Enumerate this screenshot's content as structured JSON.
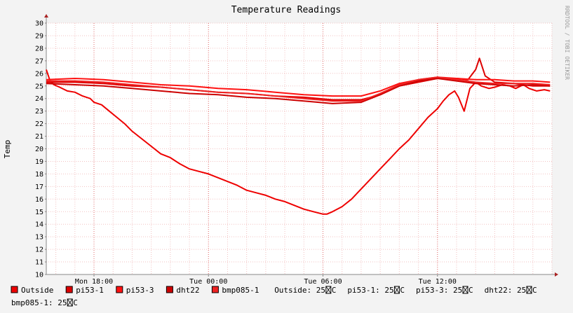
{
  "chart_data": {
    "type": "line",
    "title": "Temperature Readings",
    "ylabel": "Temp",
    "xlabel": "",
    "watermark": "RRDTOOL / TOBI OETIKER",
    "ylim": [
      10,
      30
    ],
    "yticks": [
      10,
      11,
      12,
      13,
      14,
      15,
      16,
      17,
      18,
      19,
      20,
      21,
      22,
      23,
      24,
      25,
      26,
      27,
      28,
      29,
      30
    ],
    "xlim": [
      15.5,
      42.0
    ],
    "x_unit": "hours since Mon 00:00",
    "xticks": [
      {
        "x": 18,
        "label": "Mon 18:00"
      },
      {
        "x": 24,
        "label": "Tue 00:00"
      },
      {
        "x": 30,
        "label": "Tue 06:00"
      },
      {
        "x": 36,
        "label": "Tue 12:00"
      }
    ],
    "grid": true,
    "legend_position": "bottom",
    "series": [
      {
        "name": "Outside",
        "color": "#ee0000",
        "x": [
          15.5,
          15.7,
          15.9,
          16.2,
          16.6,
          17.0,
          17.4,
          17.8,
          18.0,
          18.4,
          18.8,
          19.2,
          19.6,
          20.0,
          20.5,
          21.0,
          21.5,
          22.0,
          22.5,
          23.0,
          23.5,
          24.0,
          24.5,
          25.0,
          25.5,
          26.0,
          26.5,
          27.0,
          27.5,
          28.0,
          28.5,
          29.0,
          29.5,
          30.0,
          30.2,
          30.5,
          31.0,
          31.5,
          32.0,
          32.5,
          33.0,
          33.5,
          34.0,
          34.5,
          35.0,
          35.5,
          36.0,
          36.3,
          36.6,
          36.9,
          37.1,
          37.4,
          37.7,
          38.0,
          38.3,
          38.7,
          39.0,
          39.4,
          39.8,
          40.1,
          40.5,
          40.8,
          41.2,
          41.6,
          41.9
        ],
        "values": [
          26.3,
          25.4,
          25.1,
          24.9,
          24.6,
          24.5,
          24.2,
          24.0,
          23.7,
          23.5,
          23.0,
          22.5,
          22.0,
          21.4,
          20.8,
          20.2,
          19.6,
          19.3,
          18.8,
          18.4,
          18.2,
          18.0,
          17.7,
          17.4,
          17.1,
          16.7,
          16.5,
          16.3,
          16.0,
          15.8,
          15.5,
          15.2,
          15.0,
          14.8,
          14.8,
          15.0,
          15.4,
          16.0,
          16.8,
          17.6,
          18.4,
          19.2,
          20.0,
          20.7,
          21.6,
          22.5,
          23.2,
          23.8,
          24.3,
          24.6,
          24.1,
          23.0,
          24.8,
          25.3,
          25.0,
          24.8,
          24.9,
          25.1,
          25.0,
          24.8,
          25.1,
          24.8,
          24.6,
          24.7,
          24.6
        ]
      },
      {
        "name": "pi53-1",
        "color": "#dd0000",
        "x": [
          15.5,
          17.0,
          18.5,
          20.0,
          21.5,
          23.0,
          24.5,
          26.0,
          27.5,
          29.0,
          30.5,
          32.0,
          33.0,
          34.0,
          35.0,
          36.0,
          37.0,
          37.6,
          38.0,
          38.2,
          38.5,
          39.0,
          40.0,
          41.0,
          41.9
        ],
        "values": [
          25.3,
          25.3,
          25.2,
          25.0,
          24.9,
          24.7,
          24.5,
          24.4,
          24.2,
          24.1,
          23.9,
          23.9,
          24.3,
          25.0,
          25.3,
          25.6,
          25.6,
          25.5,
          26.3,
          27.2,
          25.8,
          25.3,
          25.2,
          25.0,
          25.0
        ]
      },
      {
        "name": "pi53-3",
        "color": "#ff1111",
        "x": [
          15.5,
          17.0,
          18.5,
          20.0,
          21.5,
          23.0,
          24.5,
          26.0,
          27.5,
          29.0,
          30.5,
          32.0,
          33.0,
          34.0,
          35.0,
          36.0,
          37.0,
          38.0,
          39.0,
          40.0,
          41.0,
          41.9
        ],
        "values": [
          25.5,
          25.6,
          25.5,
          25.3,
          25.1,
          25.0,
          24.8,
          24.7,
          24.5,
          24.3,
          24.2,
          24.2,
          24.6,
          25.2,
          25.5,
          25.7,
          25.6,
          25.5,
          25.5,
          25.4,
          25.4,
          25.3
        ]
      },
      {
        "name": "dht22",
        "color": "#cc0000",
        "x": [
          15.5,
          17.0,
          18.5,
          20.0,
          21.5,
          23.0,
          24.5,
          26.0,
          27.5,
          29.0,
          30.5,
          32.0,
          33.0,
          34.0,
          35.0,
          36.0,
          37.0,
          38.0,
          39.0,
          40.0,
          41.0,
          41.9
        ],
        "values": [
          25.2,
          25.1,
          25.0,
          24.8,
          24.6,
          24.4,
          24.3,
          24.1,
          24.0,
          23.8,
          23.6,
          23.7,
          24.3,
          25.0,
          25.4,
          25.6,
          25.4,
          25.2,
          25.1,
          25.0,
          25.1,
          25.0
        ]
      },
      {
        "name": "bmp085-1",
        "color": "#ee2222",
        "x": [
          15.5,
          17.0,
          18.5,
          20.0,
          21.5,
          23.0,
          24.5,
          26.0,
          27.5,
          29.0,
          30.5,
          32.0,
          33.0,
          34.0,
          35.0,
          36.0,
          37.0,
          38.0,
          39.0,
          40.0,
          41.0,
          41.9
        ],
        "values": [
          25.4,
          25.4,
          25.3,
          25.1,
          24.9,
          24.7,
          24.5,
          24.4,
          24.2,
          24.0,
          23.8,
          23.8,
          24.4,
          25.1,
          25.5,
          25.7,
          25.5,
          25.3,
          25.2,
          25.2,
          25.2,
          25.1
        ]
      }
    ],
    "legend_items": [
      {
        "label": "Outside",
        "color": "#ee0000"
      },
      {
        "label": "pi53-1",
        "color": "#dd0000"
      },
      {
        "label": "pi53-3",
        "color": "#ff1111"
      },
      {
        "label": "dht22",
        "color": "#cc0000"
      },
      {
        "label": "bmp085-1",
        "color": "#ee2222"
      }
    ],
    "legend_readouts": [
      {
        "label": "Outside: 25",
        "unit": "C"
      },
      {
        "label": "pi53-1: 25",
        "unit": "C"
      },
      {
        "label": "pi53-3: 25",
        "unit": "C"
      },
      {
        "label": "dht22: 25",
        "unit": "C"
      }
    ],
    "legend_readouts_row2": [
      {
        "label": "bmp085-1: 25",
        "unit": "C"
      }
    ]
  }
}
